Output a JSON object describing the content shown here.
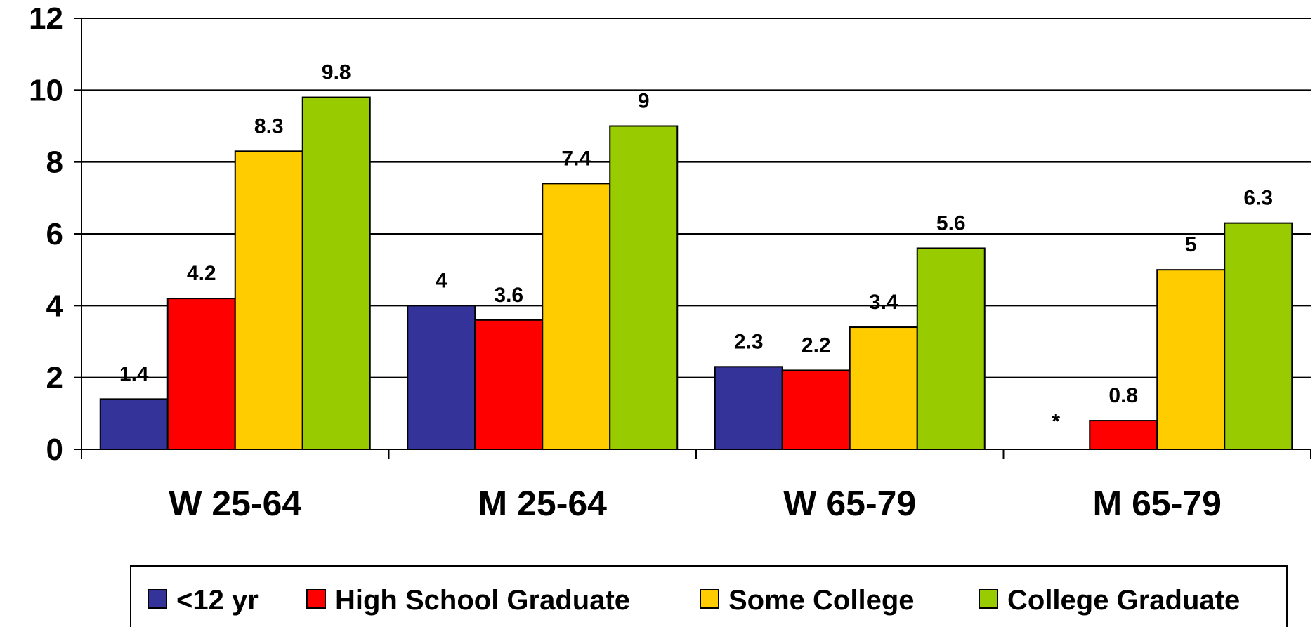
{
  "chart_data": {
    "type": "bar",
    "categories": [
      "W 25-64",
      "M 25-64",
      "W 65-79",
      "M 65-79"
    ],
    "series": [
      {
        "name": "<12 yr",
        "color": "#333399",
        "values": [
          1.4,
          4,
          2.3,
          null
        ],
        "labels": [
          "1.4",
          "4",
          "2.3",
          "*"
        ]
      },
      {
        "name": "High School Graduate",
        "color": "#ff0000",
        "values": [
          4.2,
          3.6,
          2.2,
          0.8
        ],
        "labels": [
          "4.2",
          "3.6",
          "2.2",
          "0.8"
        ]
      },
      {
        "name": "Some College",
        "color": "#ffcc00",
        "values": [
          8.3,
          7.4,
          3.4,
          5
        ],
        "labels": [
          "8.3",
          "7.4",
          "3.4",
          "5"
        ]
      },
      {
        "name": "College Graduate",
        "color": "#99cc00",
        "values": [
          9.8,
          9,
          5.6,
          6.3
        ],
        "labels": [
          "9.8",
          "9",
          "5.6",
          "6.3"
        ]
      }
    ],
    "ylim": [
      0,
      12
    ],
    "yticks": [
      0,
      2,
      4,
      6,
      8,
      10,
      12
    ],
    "grid": true,
    "legend_position": "bottom",
    "title": "",
    "xlabel": "",
    "ylabel": ""
  }
}
